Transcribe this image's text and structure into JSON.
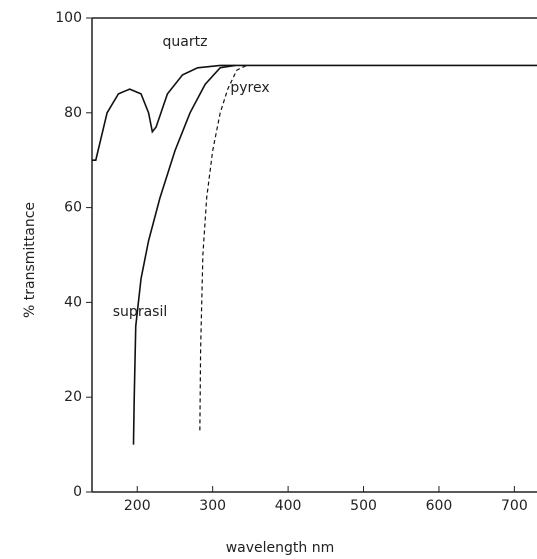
{
  "chart_data": {
    "type": "line",
    "x_label": "wavelength nm",
    "y_label": "% transmittance",
    "xlim": [
      140,
      730
    ],
    "ylim": [
      0,
      100
    ],
    "xticks": [
      200,
      300,
      400,
      500,
      600,
      700
    ],
    "yticks": [
      0,
      20,
      40,
      60,
      80,
      100
    ],
    "series": [
      {
        "name": "quartz",
        "color": "#111111",
        "dashed": false,
        "x": [
          140,
          145,
          160,
          175,
          190,
          205,
          215,
          220,
          225,
          240,
          260,
          280,
          310,
          730
        ],
        "values": [
          70,
          70,
          80,
          84,
          85,
          84,
          80,
          76,
          77,
          84,
          88,
          89.5,
          90,
          90
        ]
      },
      {
        "name": "suprasil",
        "color": "#111111",
        "dashed": false,
        "x": [
          195,
          196,
          198,
          205,
          215,
          230,
          250,
          270,
          290,
          310,
          330
        ],
        "values": [
          10,
          20,
          35,
          45,
          53,
          62,
          72,
          80,
          86,
          89.5,
          90
        ]
      },
      {
        "name": "pyrex",
        "color": "#111111",
        "dashed": true,
        "x": [
          283,
          284,
          287,
          292,
          300,
          310,
          320,
          332,
          345
        ],
        "values": [
          13,
          30,
          50,
          62,
          72,
          80,
          85,
          89,
          90
        ]
      }
    ]
  }
}
